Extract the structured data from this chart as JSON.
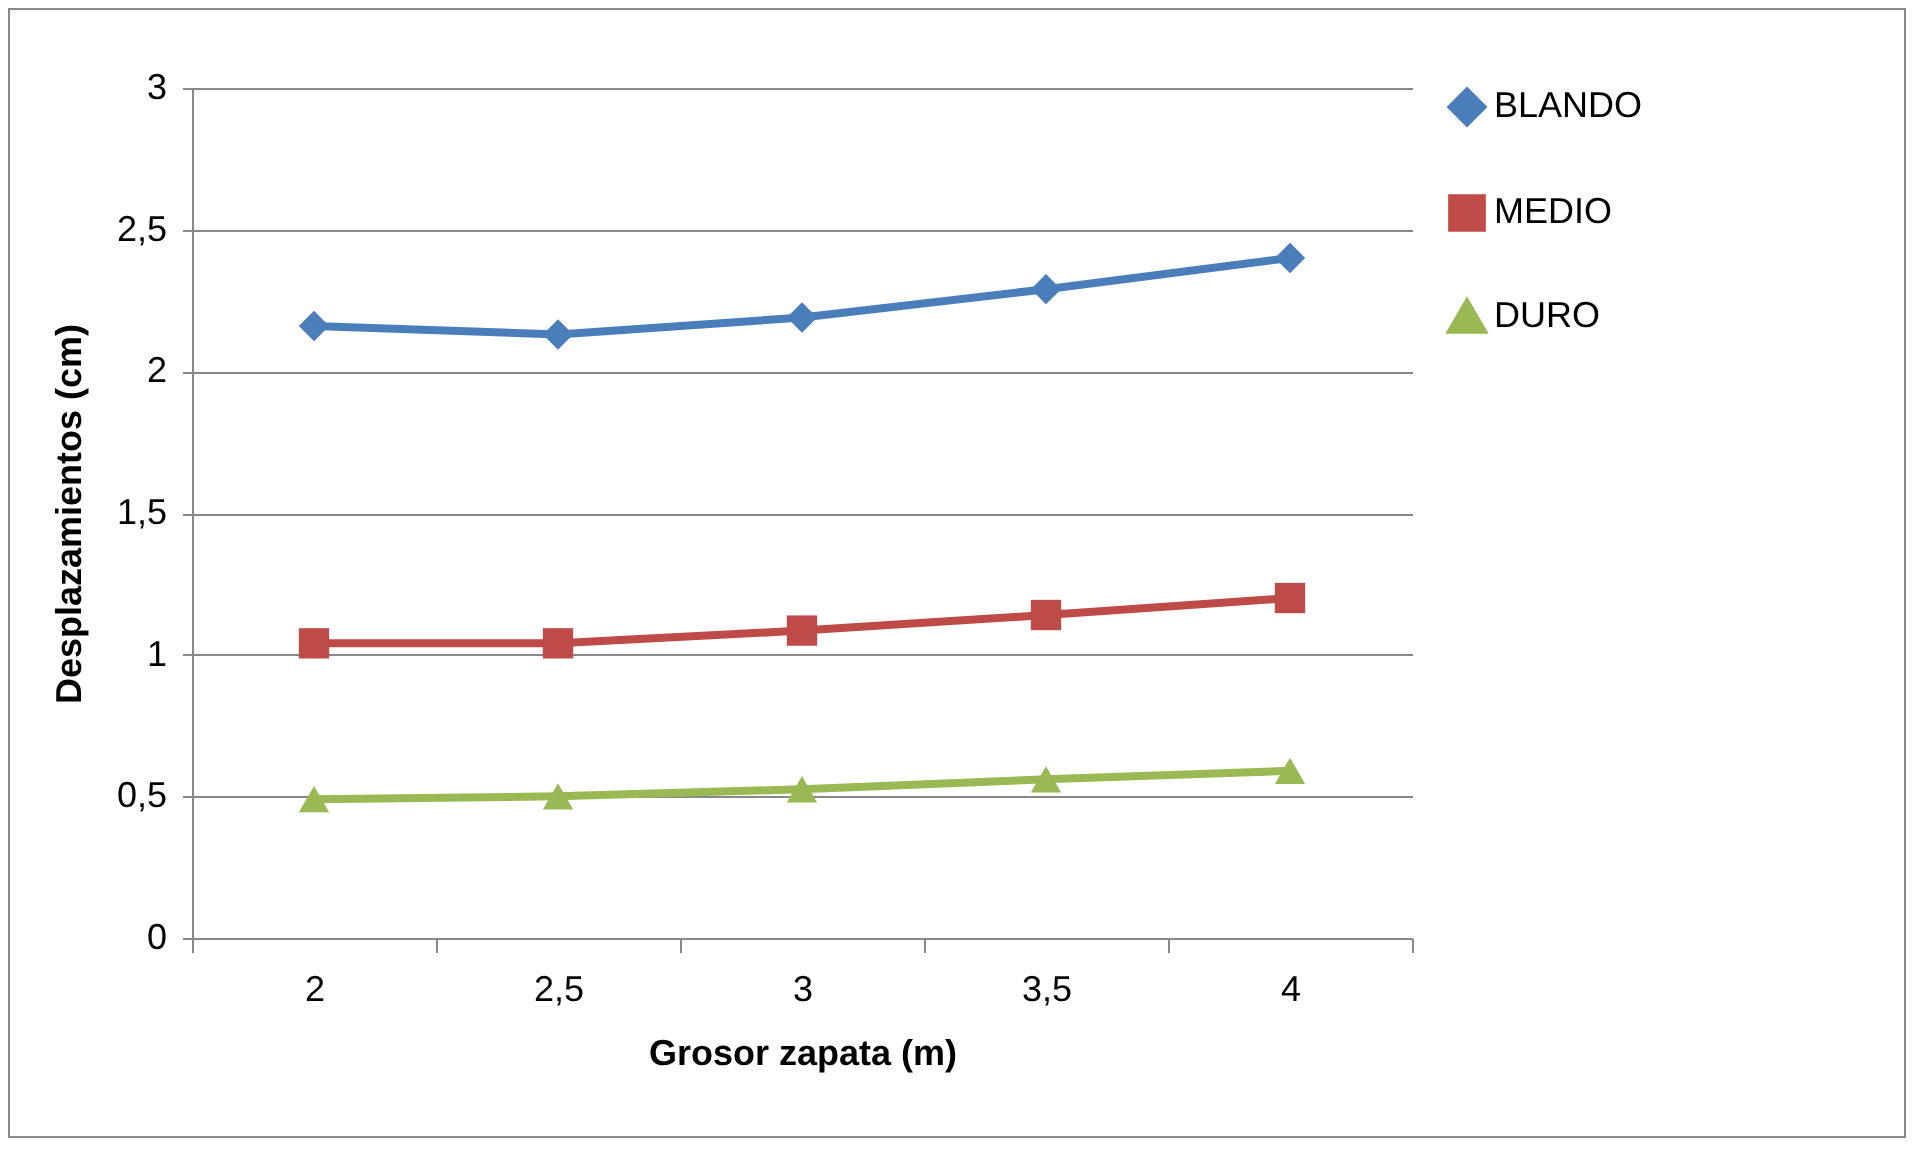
{
  "chart_data": {
    "type": "line",
    "xlabel": "Grosor zapata (m)",
    "ylabel": "Desplazamientos (cm)",
    "categories": [
      "2",
      "2,5",
      "3",
      "3,5",
      "4"
    ],
    "series": [
      {
        "name": "BLANDO",
        "color": "#4a7ebb",
        "marker": "diamond",
        "values": [
          2.16,
          2.13,
          2.19,
          2.29,
          2.4
        ]
      },
      {
        "name": "MEDIO",
        "color": "#be4b48",
        "marker": "square",
        "values": [
          1.04,
          1.04,
          1.085,
          1.14,
          1.2
        ]
      },
      {
        "name": "DURO",
        "color": "#98b954",
        "marker": "triangle",
        "values": [
          0.49,
          0.5,
          0.525,
          0.56,
          0.59
        ]
      }
    ],
    "ylim": [
      0,
      3
    ],
    "yticks": [
      0,
      {
        "value": 0.5,
        "label": "0,5"
      },
      1,
      {
        "value": 1.5,
        "label": "1,5"
      },
      2,
      {
        "value": 2.5,
        "label": "2,5"
      },
      3
    ],
    "grid": "y",
    "legend": "right",
    "line_style": "solid"
  }
}
